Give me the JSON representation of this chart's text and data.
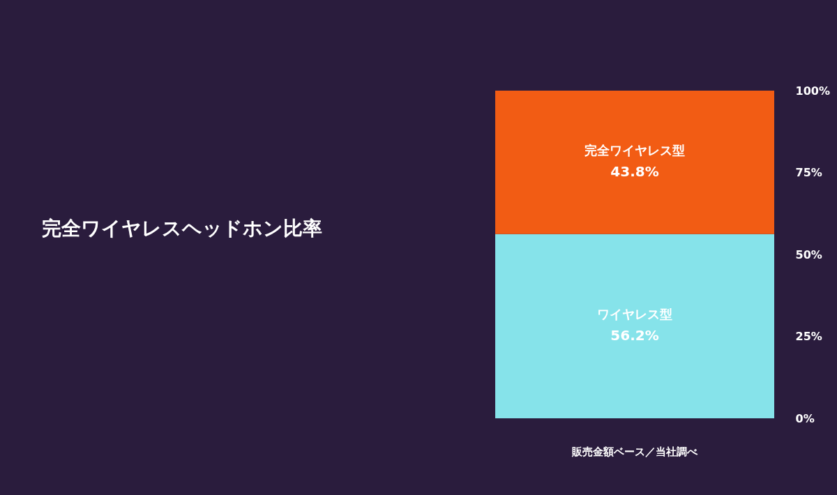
{
  "chart_data": {
    "type": "bar",
    "title": "完全ワイヤレスヘッドホン比率",
    "categories": [
      null
    ],
    "stacked": true,
    "series": [
      {
        "name": "ワイヤレス型",
        "color": "#86e3ea",
        "values": [
          56.2
        ],
        "value_labels": [
          "56.2%"
        ]
      },
      {
        "name": "完全ワイヤレス型",
        "color": "#f25c14",
        "values": [
          43.8
        ],
        "value_labels": [
          "43.8%"
        ]
      }
    ],
    "ylim": [
      0,
      100
    ],
    "yticks": [
      {
        "value": 0,
        "label": "0%"
      },
      {
        "value": 25,
        "label": "25%"
      },
      {
        "value": 50,
        "label": "50%"
      },
      {
        "value": 75,
        "label": "75%"
      },
      {
        "value": 100,
        "label": "100%"
      }
    ],
    "tick_labels": "y",
    "grid": false,
    "legend": false,
    "annotations": [
      "販売金額ベース／当社調べ"
    ]
  }
}
